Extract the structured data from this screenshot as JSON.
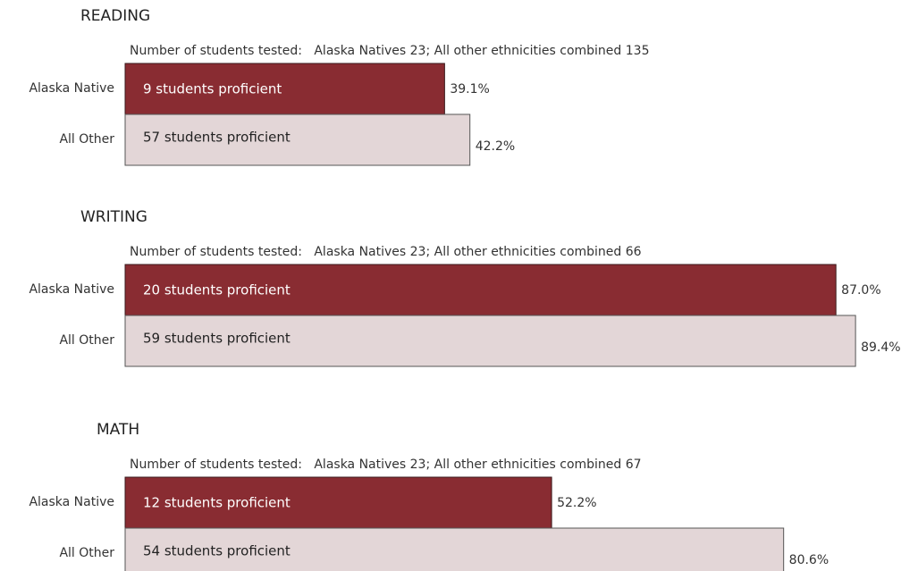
{
  "chart_data": [
    {
      "type": "hbar",
      "title": "READING",
      "subtitle": "Number of students tested:   Alaska Natives 23; All other ethnicities combined 135",
      "categories": [
        "Alaska Native",
        "All Other"
      ],
      "values": [
        39.1,
        42.2
      ],
      "value_labels": [
        "39.1%",
        "42.2%"
      ],
      "bar_labels": [
        "9 students proficient",
        "57 students proficient"
      ],
      "colors": [
        "#892c32",
        "#e3d6d7"
      ],
      "xlim": [
        0,
        100
      ]
    },
    {
      "type": "hbar",
      "title": "WRITING",
      "subtitle": "Number of students tested:   Alaska Natives 23; All other ethnicities combined 66",
      "categories": [
        "Alaska Native",
        "All Other"
      ],
      "values": [
        87.0,
        89.4
      ],
      "value_labels": [
        "87.0%",
        "89.4%"
      ],
      "bar_labels": [
        "20 students proficient",
        "59 students proficient"
      ],
      "colors": [
        "#892c32",
        "#e3d6d7"
      ],
      "xlim": [
        0,
        100
      ]
    },
    {
      "type": "hbar",
      "title": "MATH",
      "subtitle": "Number of students tested:   Alaska Natives 23; All other ethnicities combined 67",
      "categories": [
        "Alaska Native",
        "All Other"
      ],
      "values": [
        52.2,
        80.6
      ],
      "value_labels": [
        "52.2%",
        "80.6%"
      ],
      "bar_labels": [
        "12 students proficient",
        "54 students proficient"
      ],
      "colors": [
        "#892c32",
        "#e3d6d7"
      ],
      "xlim": [
        0,
        100
      ]
    }
  ]
}
